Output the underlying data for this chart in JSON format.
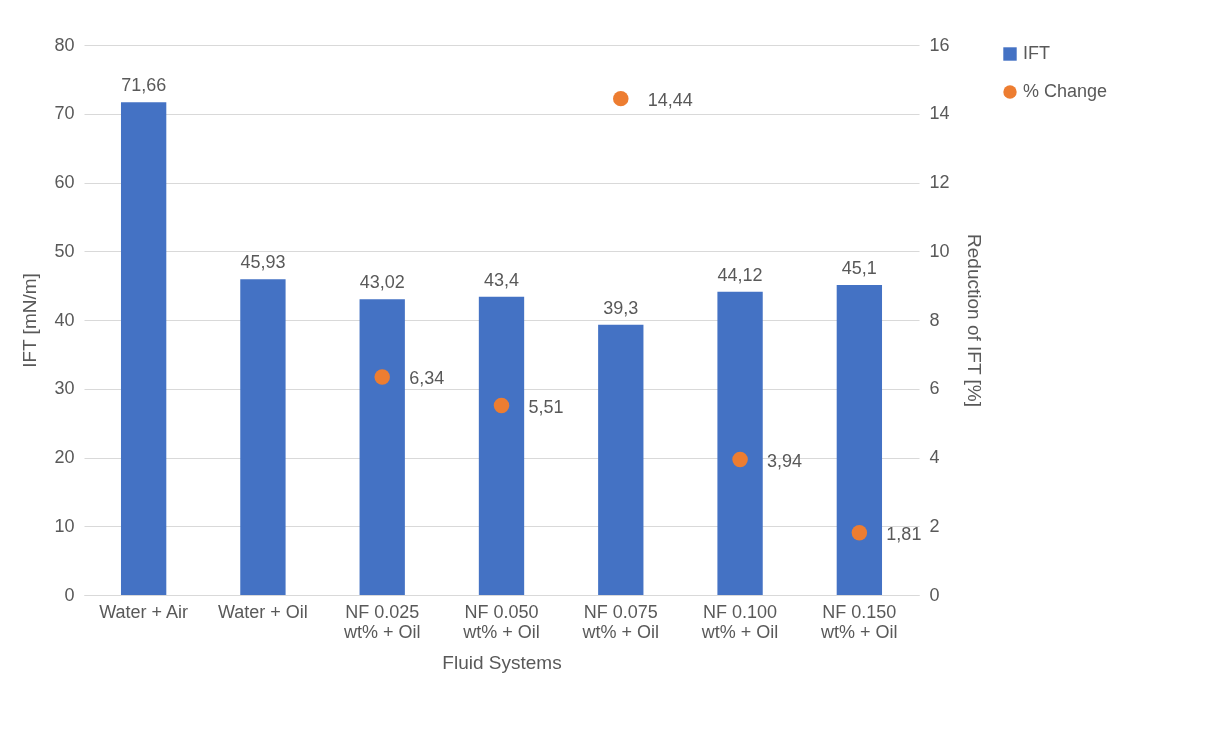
{
  "chart_data": {
    "type": "bar",
    "xlabel": "Fluid Systems",
    "ylabel": "IFT [mN/m]",
    "y2label": "Reduction of IFT [%]",
    "categories": [
      "Water + Air",
      "Water + Oil",
      "NF 0.025 wt% + Oil",
      "NF 0.050 wt% + Oil",
      "NF 0.075 wt% + Oil",
      "NF 0.100 wt% + Oil",
      "NF 0.150 wt% + Oil"
    ],
    "series": [
      {
        "name": "IFT",
        "type": "bar",
        "color": "#4472c4",
        "values": [
          71.66,
          45.93,
          43.02,
          43.4,
          39.3,
          44.12,
          45.1
        ],
        "value_labels": [
          "71,66",
          "45,93",
          "43,02",
          "43,4",
          "39,3",
          "44,12",
          "45,1"
        ]
      },
      {
        "name": "% Change",
        "type": "scatter",
        "axis": "y2",
        "marker": "circle",
        "color": "#ed7d31",
        "values": [
          null,
          null,
          6.34,
          5.51,
          14.44,
          3.94,
          1.81
        ],
        "value_labels": [
          null,
          null,
          "6,34",
          "5,51",
          "14,44",
          "3,94",
          "1,81"
        ]
      }
    ],
    "ylim": [
      0,
      80
    ],
    "yticks": [
      0,
      10,
      20,
      30,
      40,
      50,
      60,
      70,
      80
    ],
    "y2lim": [
      0,
      16
    ],
    "y2ticks": [
      0,
      2,
      4,
      6,
      8,
      10,
      12,
      14,
      16
    ],
    "grid": "y",
    "legend": "right"
  }
}
